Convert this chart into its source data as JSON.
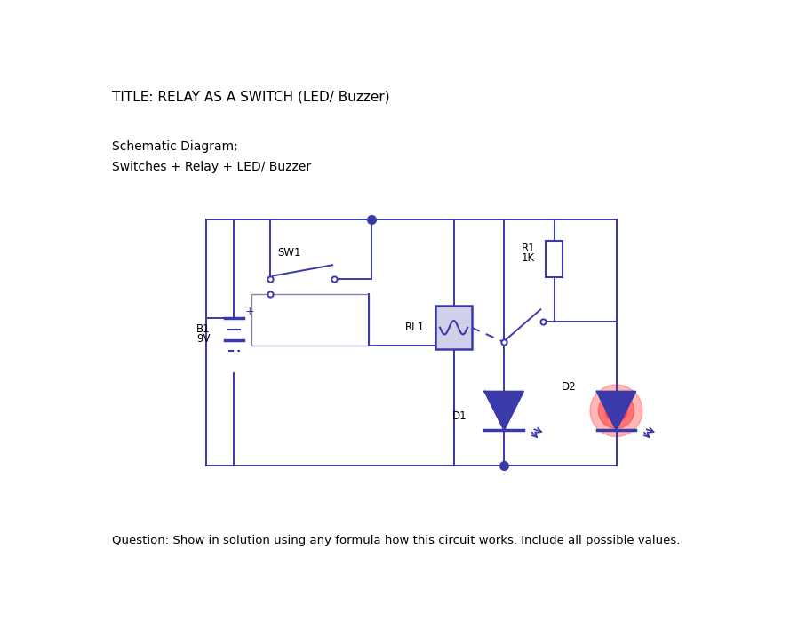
{
  "title": "TITLE: RELAY AS A SWITCH (LED/ Buzzer)",
  "subtitle1": "Schematic Diagram:",
  "subtitle2": "Switches + Relay + LED/ Buzzer",
  "question": "Question: Show in solution using any formula how this circuit works. Include all possible values.",
  "bg_color": "#ffffff",
  "wire_color": "#3a3aaa",
  "text_color": "#000000",
  "led_glow_color": "#ff3333",
  "dashed_color": "#3a3aaa",
  "title_fontsize": 11,
  "label_fontsize": 8.5,
  "question_fontsize": 9.5,
  "lw": 1.4
}
